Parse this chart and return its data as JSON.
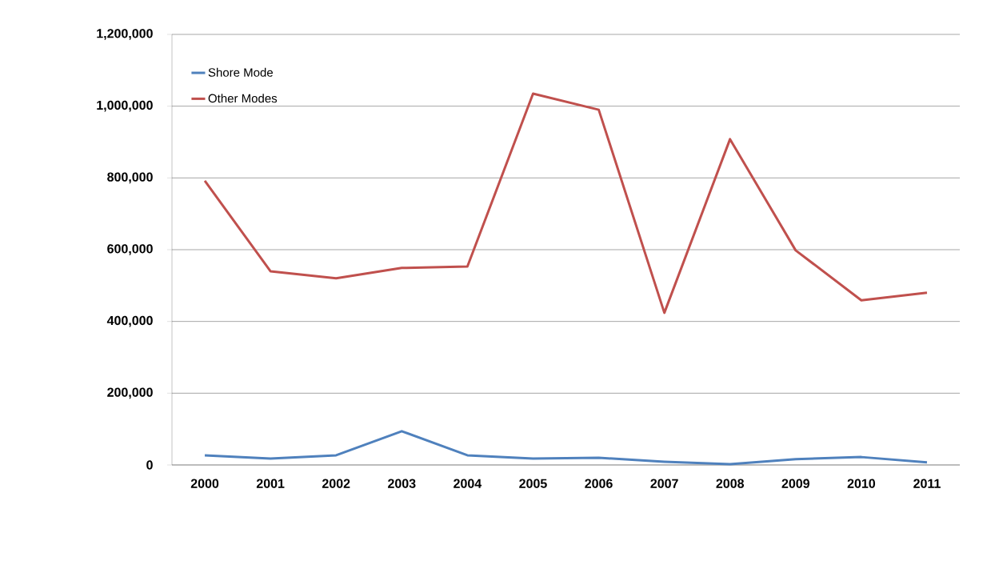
{
  "chart_data": {
    "type": "line",
    "categories": [
      "2000",
      "2001",
      "2002",
      "2003",
      "2004",
      "2005",
      "2006",
      "2007",
      "2008",
      "2009",
      "2010",
      "2011"
    ],
    "series": [
      {
        "name": "Shore Mode",
        "color": "#4f81bd",
        "values": [
          27000,
          18000,
          27000,
          94000,
          27000,
          18000,
          20000,
          9000,
          2000,
          16000,
          22000,
          7000
        ]
      },
      {
        "name": "Other Modes",
        "color": "#c0504d",
        "values": [
          792000,
          540000,
          520000,
          549000,
          553000,
          1035000,
          990000,
          424000,
          908000,
          598000,
          459000,
          480000
        ]
      }
    ],
    "ylim": [
      0,
      1200000
    ],
    "yticks": [
      {
        "value": 0,
        "label": "0"
      },
      {
        "value": 200000,
        "label": "200,000"
      },
      {
        "value": 400000,
        "label": "400,000"
      },
      {
        "value": 600000,
        "label": "600,000"
      },
      {
        "value": 800000,
        "label": "800,000"
      },
      {
        "value": 1000000,
        "label": "1,000,000"
      },
      {
        "value": 1200000,
        "label": "1,200,000"
      }
    ],
    "grid": "y",
    "legend": "top left",
    "marker": "none",
    "line_style": "solid"
  }
}
